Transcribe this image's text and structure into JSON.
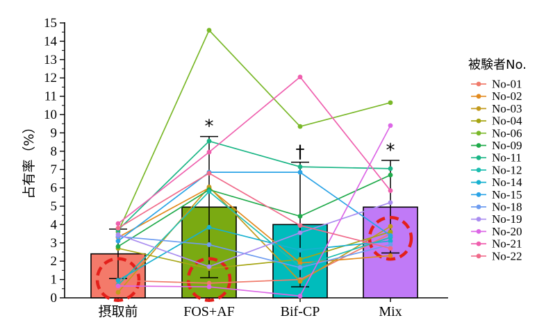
{
  "chart_data": {
    "type": "bar",
    "ylabel": "占有率（%）",
    "ylim": [
      0,
      15
    ],
    "yticks": [
      0,
      1,
      2,
      3,
      4,
      5,
      6,
      7,
      8,
      9,
      10,
      11,
      12,
      13,
      14,
      15
    ],
    "categories": [
      "摂取前",
      "FOS+AF",
      "Bif-CP",
      "Mix"
    ],
    "bars": {
      "values": [
        2.4,
        4.95,
        4.0,
        4.95
      ],
      "error_upper": [
        3.75,
        8.8,
        7.4,
        7.5
      ],
      "error_lower": [
        1.05,
        1.1,
        0.6,
        2.45
      ],
      "colors": [
        "#f47a6a",
        "#7aaa12",
        "#00bcbc",
        "#c07af7"
      ]
    },
    "significance": [
      "",
      "*",
      "†",
      "*"
    ],
    "highlight_circles": [
      0,
      1,
      3
    ],
    "legend_title": "被験者No.",
    "series": [
      {
        "name": "No-01",
        "color": "#f07b6b",
        "values": [
          0.95,
          0.8,
          1.0,
          3.5
        ]
      },
      {
        "name": "No-02",
        "color": "#e28a1e",
        "values": [
          3.3,
          6.0,
          1.9,
          2.3
        ]
      },
      {
        "name": "No-03",
        "color": "#c39a1d",
        "values": [
          0.3,
          6.05,
          0.9,
          3.9
        ]
      },
      {
        "name": "No-04",
        "color": "#a6a512",
        "values": [
          2.7,
          1.6,
          2.1,
          3.6
        ]
      },
      {
        "name": "No-06",
        "color": "#7ab829",
        "values": [
          3.6,
          14.6,
          9.35,
          10.65
        ]
      },
      {
        "name": "No-09",
        "color": "#1faa4a",
        "values": [
          2.8,
          5.9,
          4.45,
          6.7
        ]
      },
      {
        "name": "No-11",
        "color": "#19b585",
        "values": [
          3.7,
          8.55,
          7.15,
          7.05
        ]
      },
      {
        "name": "No-12",
        "color": "#1dbdb0",
        "values": [
          0.7,
          5.8,
          1.7,
          3.3
        ]
      },
      {
        "name": "No-14",
        "color": "#17b1d0",
        "values": [
          0.95,
          3.85,
          2.6,
          3.1
        ]
      },
      {
        "name": "No-15",
        "color": "#2aa3e6",
        "values": [
          3.1,
          6.85,
          6.85,
          3.4
        ]
      },
      {
        "name": "No-18",
        "color": "#6e9cf0",
        "values": [
          3.35,
          2.9,
          1.65,
          2.9
        ]
      },
      {
        "name": "No-19",
        "color": "#a98cf0",
        "values": [
          3.45,
          1.7,
          3.55,
          5.2
        ]
      },
      {
        "name": "No-20",
        "color": "#dc66e6",
        "values": [
          0.65,
          0.6,
          0.1,
          9.4
        ]
      },
      {
        "name": "No-21",
        "color": "#ef5fae",
        "values": [
          4.05,
          7.95,
          12.05,
          5.85
        ]
      },
      {
        "name": "No-22",
        "color": "#f06a8a",
        "values": [
          3.8,
          6.8,
          3.95,
          2.7
        ]
      }
    ]
  }
}
